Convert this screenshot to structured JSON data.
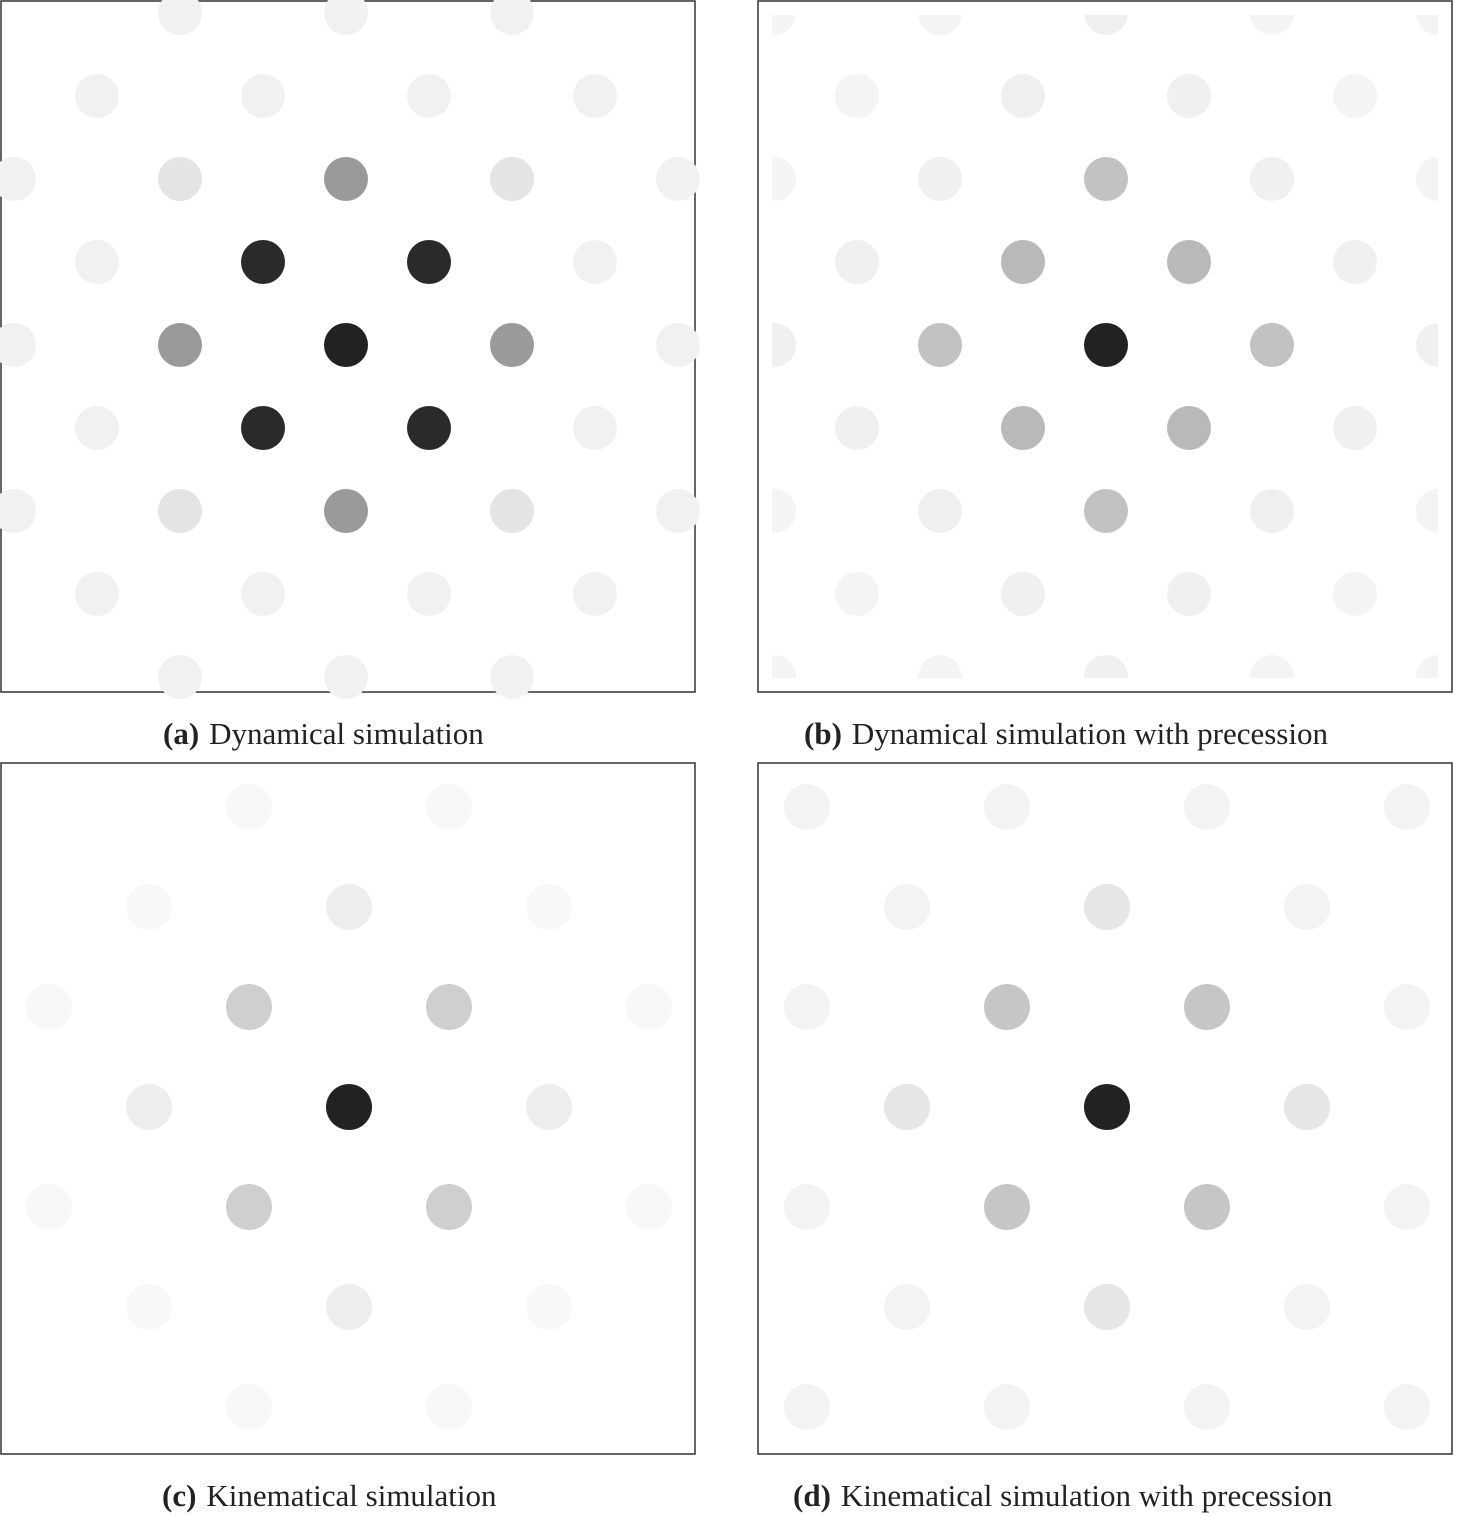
{
  "panels": [
    {
      "label": "(a)",
      "caption": "Dynamical simulation"
    },
    {
      "label": "(b)",
      "caption": "Dynamical simulation with precession"
    },
    {
      "label": "(c)",
      "caption": "Kinematical simulation"
    },
    {
      "label": "(d)",
      "caption": "Kinematical simulation with precession"
    }
  ]
}
